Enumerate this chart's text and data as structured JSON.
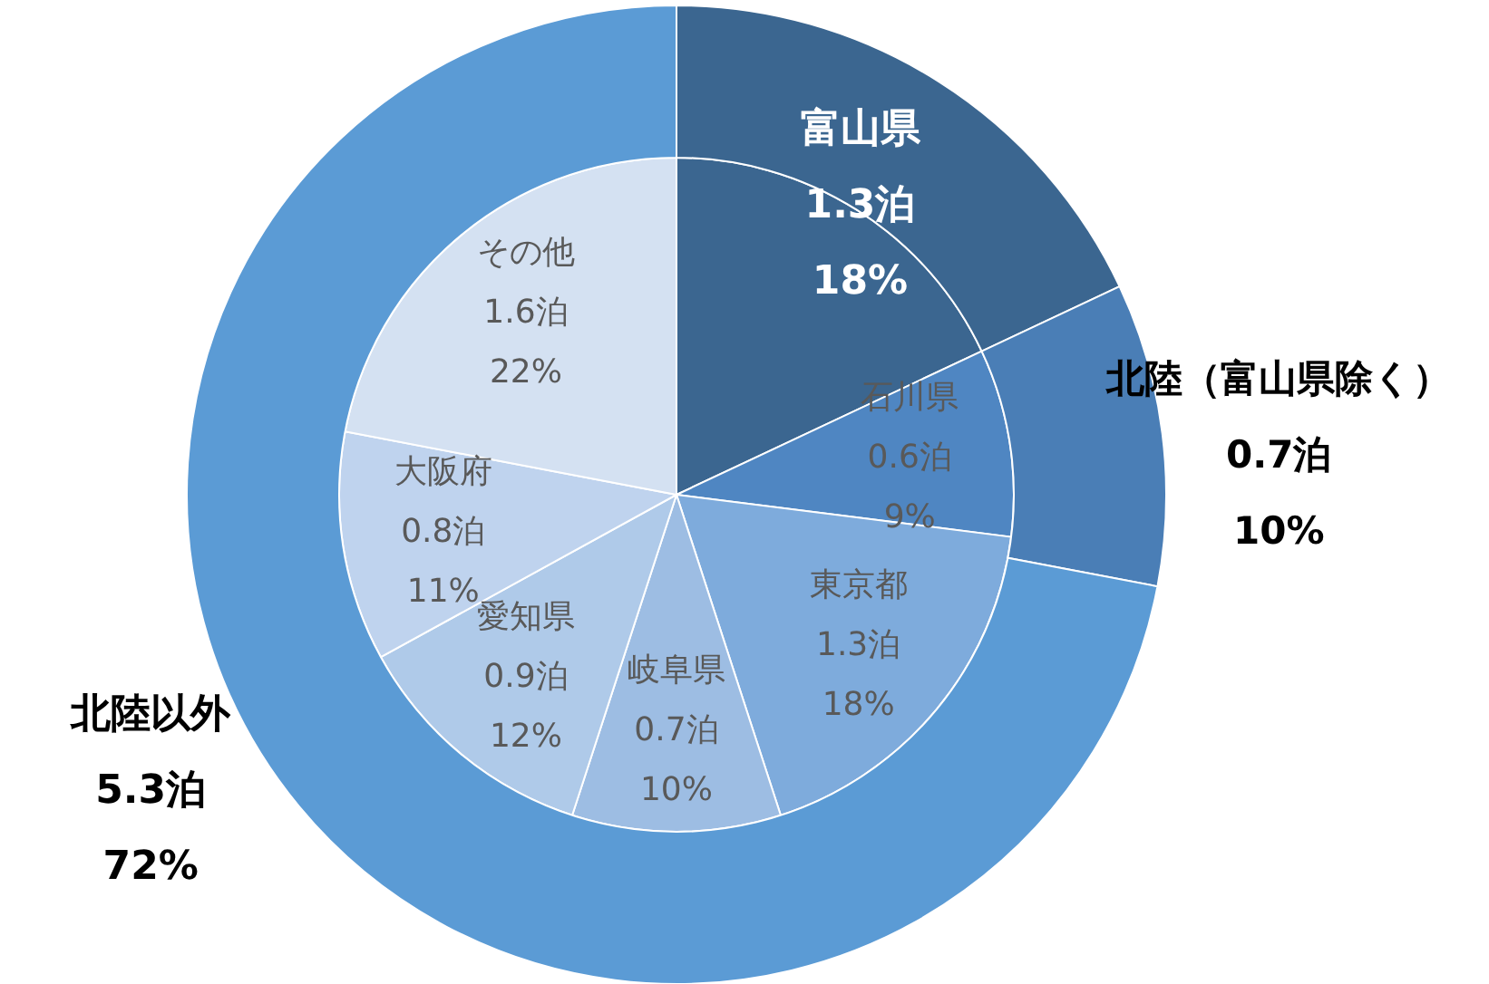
{
  "chart_data": [
    {
      "type": "donut",
      "categories": [
        "富山県",
        "北陸（富山県除く）",
        "北陸以外"
      ],
      "values": [
        18,
        10,
        72
      ],
      "colors": [
        "#3b6690",
        "#4a7eb6",
        "#5b9bd5"
      ],
      "value_labels": [
        "1.3泊\n18%",
        "0.7泊\n10%",
        "5.3泊\n72%"
      ]
    },
    {
      "type": "pie",
      "categories": [
        null,
        "石川県",
        "東京都",
        "岐阜県",
        "愛知県",
        "大阪府",
        "その他"
      ],
      "values": [
        18,
        9,
        18,
        10,
        12,
        11,
        22
      ],
      "colors": [
        "#3b6690",
        "#4f86c2",
        "#7eabdc",
        "#9dbde3",
        "#afcae9",
        "#bfd3ee",
        "#d4e1f2"
      ],
      "value_labels": [
        null,
        "0.6泊\n9%",
        "1.3泊\n18%",
        "0.7泊\n10%",
        "0.9泊\n12%",
        "0.8泊\n11%",
        "1.6泊\n22%"
      ]
    }
  ]
}
